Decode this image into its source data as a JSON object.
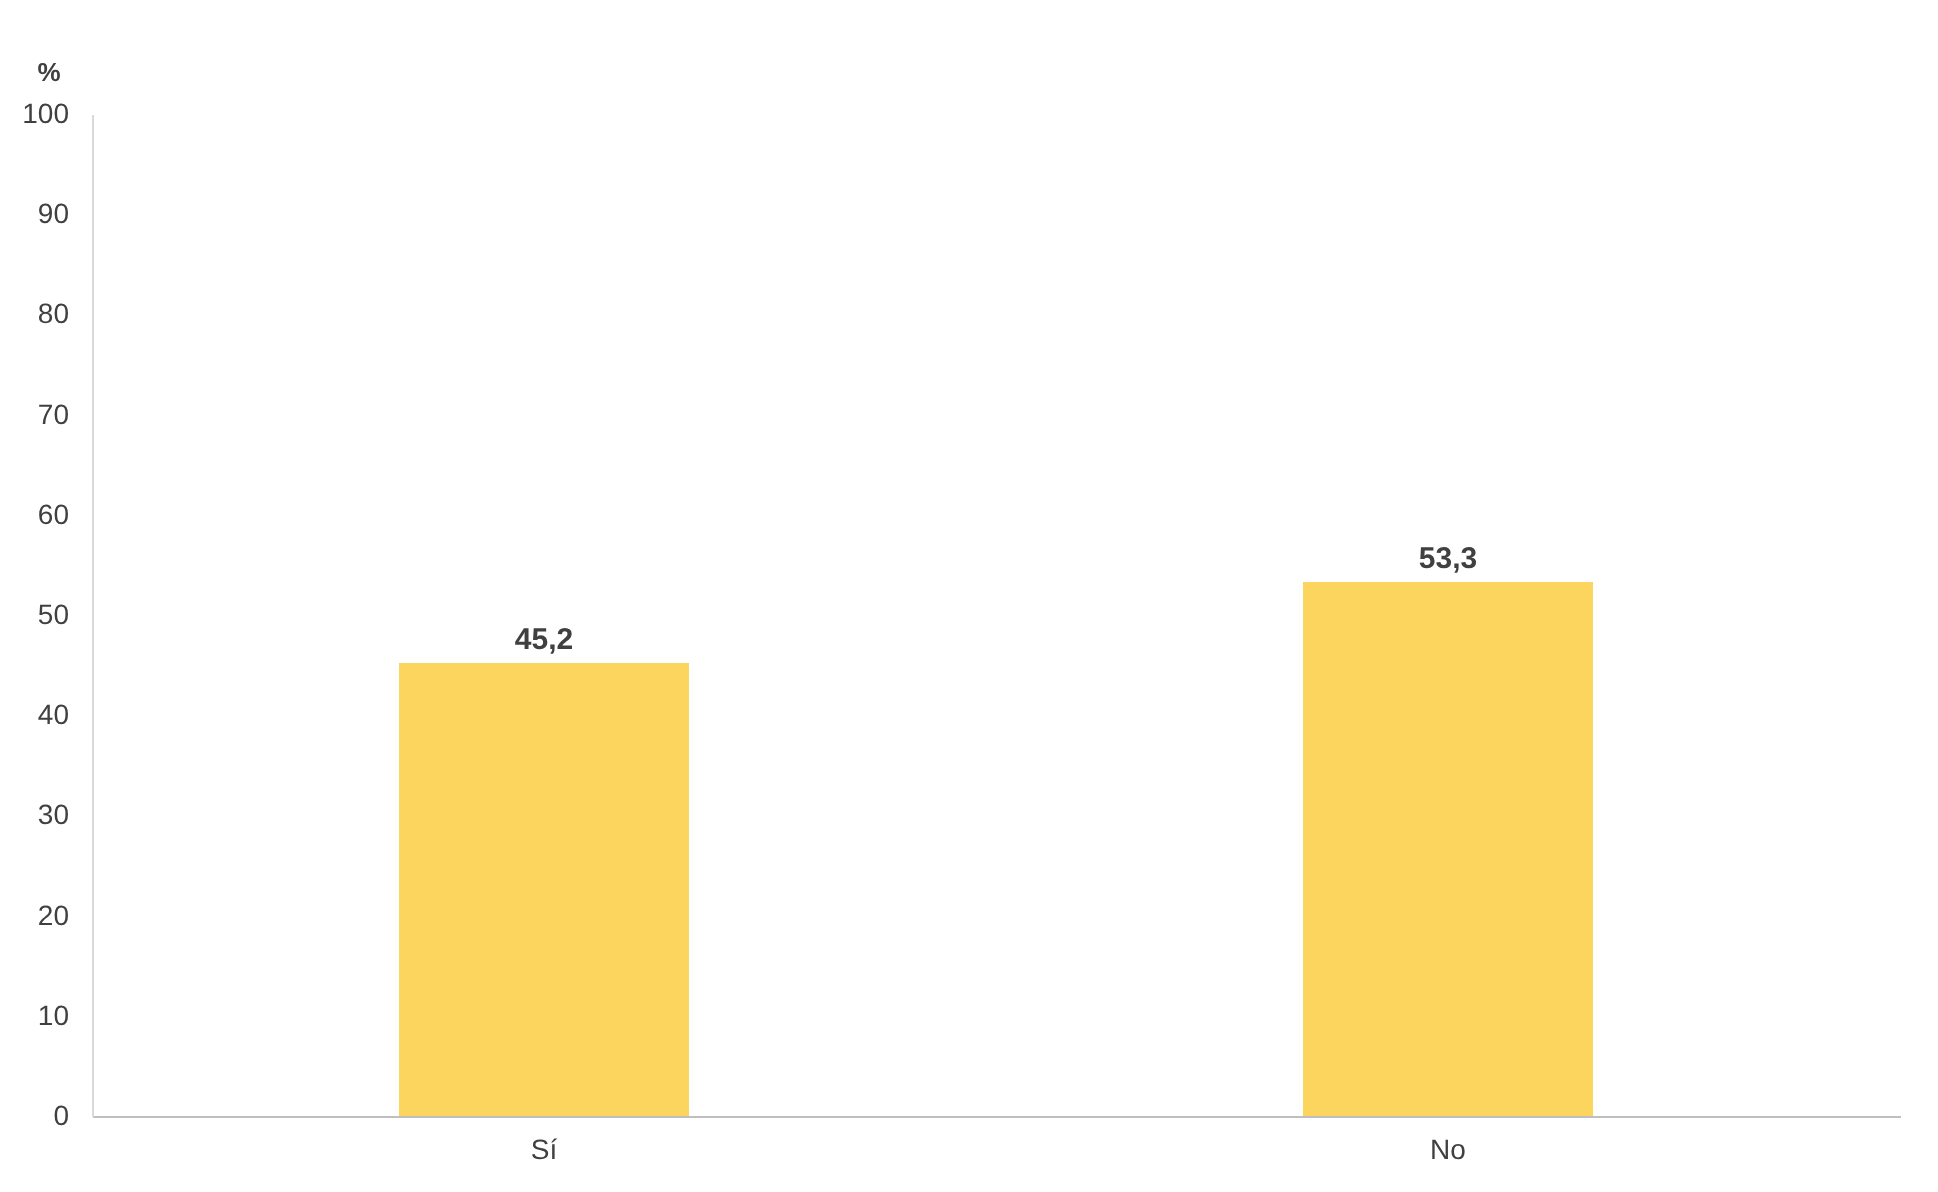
{
  "chart_data": {
    "type": "bar",
    "ylabel": "%",
    "categories": [
      "Sí",
      "No"
    ],
    "values": [
      45.2,
      53.3
    ],
    "value_labels": [
      "45,2",
      "53,3"
    ],
    "color": "#fcd55e",
    "ylim": [
      0,
      100
    ],
    "yticks": [
      0,
      10,
      20,
      30,
      40,
      50,
      60,
      70,
      80,
      90,
      100
    ],
    "grid": false
  }
}
